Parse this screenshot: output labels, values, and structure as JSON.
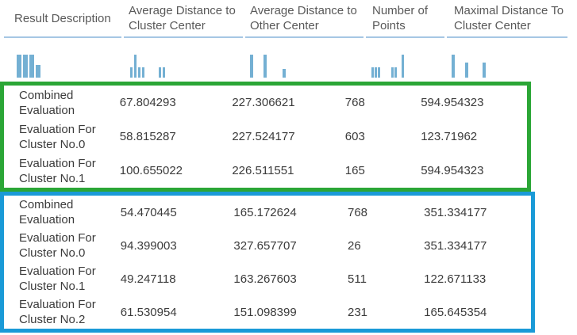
{
  "table": {
    "headers": [
      {
        "label": "Result Description"
      },
      {
        "label": "Average Distance to Cluster Center"
      },
      {
        "label": "Average Distance to Other Center"
      },
      {
        "label": "Number of Points"
      },
      {
        "label": "Maximal Distance To Cluster Center"
      }
    ]
  },
  "histograms": [
    {
      "column": "result-description",
      "bars": [
        {
          "x": 16,
          "w": 6,
          "h": 1.0
        },
        {
          "x": 24,
          "w": 6,
          "h": 1.0
        },
        {
          "x": 32,
          "w": 6,
          "h": 1.0
        },
        {
          "x": 40,
          "w": 6,
          "h": 0.55
        }
      ]
    },
    {
      "column": "average-distance-to-cluster-center",
      "bars": [
        {
          "x": 8,
          "w": 3,
          "h": 0.45
        },
        {
          "x": 13,
          "w": 3,
          "h": 1.0
        },
        {
          "x": 18,
          "w": 3,
          "h": 0.45
        },
        {
          "x": 23,
          "w": 3,
          "h": 0.45
        },
        {
          "x": 44,
          "w": 3,
          "h": 0.45
        },
        {
          "x": 49,
          "w": 3,
          "h": 0.45
        }
      ]
    },
    {
      "column": "average-distance-to-other-center",
      "bars": [
        {
          "x": 6,
          "w": 4,
          "h": 1.0
        },
        {
          "x": 23,
          "w": 4,
          "h": 1.0
        },
        {
          "x": 47,
          "w": 4,
          "h": 0.37
        }
      ]
    },
    {
      "column": "number-of-points",
      "bars": [
        {
          "x": 7,
          "w": 3,
          "h": 0.45
        },
        {
          "x": 11,
          "w": 3,
          "h": 0.45
        },
        {
          "x": 15,
          "w": 3,
          "h": 0.45
        },
        {
          "x": 32,
          "w": 3,
          "h": 0.45
        },
        {
          "x": 36,
          "w": 3,
          "h": 0.45
        },
        {
          "x": 45,
          "w": 3,
          "h": 1.0
        }
      ]
    },
    {
      "column": "maximal-distance-to-cluster-center",
      "bars": [
        {
          "x": 5,
          "w": 4,
          "h": 1.0
        },
        {
          "x": 22,
          "w": 4,
          "h": 0.64
        },
        {
          "x": 44,
          "w": 4,
          "h": 0.64
        }
      ]
    }
  ],
  "groups": [
    {
      "name": "first-evaluation-group",
      "highlight": "green",
      "rows": [
        {
          "description": "Combined Evaluation",
          "avg_distance_to_cluster_center": "67.804293",
          "avg_distance_to_other_center": "227.306621",
          "number_of_points": "768",
          "maximal_distance_to_cluster_center": "594.954323"
        },
        {
          "description": "Evaluation For Cluster No.0",
          "avg_distance_to_cluster_center": "58.815287",
          "avg_distance_to_other_center": "227.524177",
          "number_of_points": "603",
          "maximal_distance_to_cluster_center": "123.71962"
        },
        {
          "description": "Evaluation For Cluster No.1",
          "avg_distance_to_cluster_center": "100.655022",
          "avg_distance_to_other_center": "226.511551",
          "number_of_points": "165",
          "maximal_distance_to_cluster_center": "594.954323"
        }
      ]
    },
    {
      "name": "second-evaluation-group",
      "highlight": "blue",
      "rows": [
        {
          "description": "Combined Evaluation",
          "avg_distance_to_cluster_center": "54.470445",
          "avg_distance_to_other_center": "165.172624",
          "number_of_points": "768",
          "maximal_distance_to_cluster_center": "351.334177"
        },
        {
          "description": "Evaluation For Cluster No.0",
          "avg_distance_to_cluster_center": "94.399003",
          "avg_distance_to_other_center": "327.657707",
          "number_of_points": "26",
          "maximal_distance_to_cluster_center": "351.334177"
        },
        {
          "description": "Evaluation For Cluster No.1",
          "avg_distance_to_cluster_center": "49.247118",
          "avg_distance_to_other_center": "163.267603",
          "number_of_points": "511",
          "maximal_distance_to_cluster_center": "122.671133"
        },
        {
          "description": "Evaluation For Cluster No.2",
          "avg_distance_to_cluster_center": "61.530954",
          "avg_distance_to_other_center": "151.098399",
          "number_of_points": "231",
          "maximal_distance_to_cluster_center": "165.645354"
        }
      ]
    }
  ],
  "colors": {
    "header_text": "#595959",
    "body_text": "#3b3b3b",
    "header_underline": "#a6c7e4",
    "histogram_bar": "#74b0d3",
    "green_box": "#2ba636",
    "blue_box": "#1a9ad7"
  }
}
